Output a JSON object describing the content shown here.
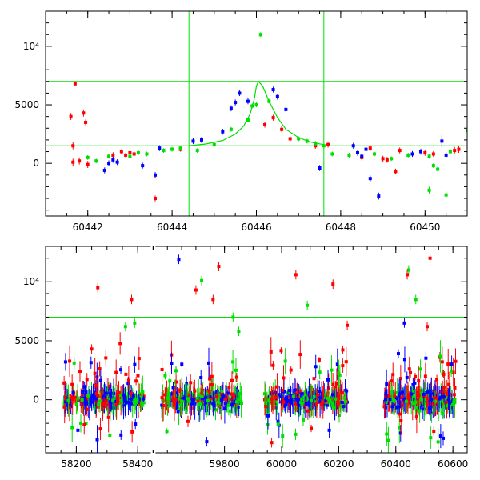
{
  "colors": {
    "red": "#ff0000",
    "blue": "#0000ff",
    "green": "#00e000",
    "axis": "#000000"
  },
  "chart_data": [
    {
      "type": "scatter",
      "xlim": [
        60441.0,
        60451.0
      ],
      "ylim": [
        -4500,
        13000
      ],
      "xticks": [
        {
          "v": 60442,
          "label": "60442"
        },
        {
          "v": 60444,
          "label": "60444"
        },
        {
          "v": 60446,
          "label": "60446"
        },
        {
          "v": 60448,
          "label": "60448"
        },
        {
          "v": 60450,
          "label": "60450"
        }
      ],
      "yticks": [
        {
          "v": 0,
          "label": "0"
        },
        {
          "v": 5000,
          "label": "5000"
        },
        {
          "v": 10000,
          "label": "10⁴"
        }
      ],
      "hlines": [
        1500,
        7000
      ],
      "vlines": [
        60444.4,
        60447.6
      ],
      "model_curve": {
        "color": "green",
        "points": [
          [
            60444.4,
            1500
          ],
          [
            60444.8,
            1650
          ],
          [
            60445.2,
            1950
          ],
          [
            60445.5,
            2500
          ],
          [
            60445.7,
            3200
          ],
          [
            60445.85,
            4200
          ],
          [
            60445.95,
            5500
          ],
          [
            60446.0,
            6600
          ],
          [
            60446.05,
            7000
          ],
          [
            60446.15,
            6600
          ],
          [
            60446.3,
            5300
          ],
          [
            60446.5,
            3900
          ],
          [
            60446.7,
            2900
          ],
          [
            60447.0,
            2200
          ],
          [
            60447.3,
            1800
          ],
          [
            60447.6,
            1600
          ]
        ]
      },
      "series": [
        {
          "color": "red",
          "points": [
            [
              60441.65,
              1500,
              300
            ],
            [
              60441.7,
              6800,
              200
            ],
            [
              60441.6,
              4000,
              300
            ],
            [
              60441.9,
              4300,
              300
            ],
            [
              60441.95,
              3500,
              250
            ],
            [
              60441.65,
              100,
              300
            ],
            [
              60441.8,
              200,
              300
            ],
            [
              60442.0,
              -100,
              300
            ],
            [
              60442.6,
              700,
              250
            ],
            [
              60442.8,
              1000,
              200
            ],
            [
              60442.9,
              700,
              200
            ],
            [
              60443.0,
              900,
              200
            ],
            [
              60443.1,
              800,
              200
            ],
            [
              60443.6,
              -3000,
              250
            ],
            [
              60444.2,
              1200,
              200
            ],
            [
              60446.2,
              3300,
              250
            ],
            [
              60446.4,
              3900,
              250
            ],
            [
              60446.6,
              2900,
              250
            ],
            [
              60446.8,
              2100,
              250
            ],
            [
              60447.4,
              1500,
              250
            ],
            [
              60447.7,
              1600,
              250
            ],
            [
              60448.5,
              500,
              250
            ],
            [
              60448.7,
              1300,
              250
            ],
            [
              60449.0,
              400,
              250
            ],
            [
              60449.1,
              300,
              250
            ],
            [
              60449.3,
              -700,
              250
            ],
            [
              60449.4,
              1100,
              250
            ],
            [
              60450.0,
              900,
              250
            ],
            [
              60450.2,
              800,
              250
            ],
            [
              60450.7,
              1100,
              300
            ],
            [
              60450.8,
              1200,
              300
            ]
          ]
        },
        {
          "color": "blue",
          "points": [
            [
              60442.4,
              -600,
              250
            ],
            [
              60442.5,
              0,
              250
            ],
            [
              60442.6,
              300,
              250
            ],
            [
              60442.7,
              100,
              250
            ],
            [
              60443.3,
              -200,
              250
            ],
            [
              60443.6,
              -1000,
              250
            ],
            [
              60443.7,
              1300,
              250
            ],
            [
              60444.5,
              1900,
              250
            ],
            [
              60444.7,
              2000,
              250
            ],
            [
              60445.2,
              2700,
              250
            ],
            [
              60445.4,
              4700,
              250
            ],
            [
              60445.5,
              5200,
              250
            ],
            [
              60445.6,
              6000,
              250
            ],
            [
              60445.8,
              5300,
              250
            ],
            [
              60446.4,
              6300,
              250
            ],
            [
              60446.5,
              5700,
              250
            ],
            [
              60446.7,
              4600,
              250
            ],
            [
              60447.5,
              -400,
              250
            ],
            [
              60448.3,
              1500,
              250
            ],
            [
              60448.4,
              900,
              250
            ],
            [
              60448.5,
              600,
              250
            ],
            [
              60448.6,
              1200,
              250
            ],
            [
              60448.7,
              -1300,
              250
            ],
            [
              60448.9,
              -2800,
              300
            ],
            [
              60449.7,
              800,
              250
            ],
            [
              60449.9,
              1000,
              250
            ],
            [
              60450.4,
              1900,
              500
            ],
            [
              60450.5,
              700,
              250
            ]
          ]
        },
        {
          "color": "green",
          "points": [
            [
              60442.0,
              500,
              200
            ],
            [
              60442.2,
              200,
              200
            ],
            [
              60442.5,
              600,
              200
            ],
            [
              60443.0,
              600,
              200
            ],
            [
              60443.2,
              900,
              200
            ],
            [
              60443.4,
              800,
              200
            ],
            [
              60443.8,
              1100,
              200
            ],
            [
              60444.0,
              1200,
              200
            ],
            [
              60444.2,
              1300,
              200
            ],
            [
              60444.6,
              1100,
              200
            ],
            [
              60445.0,
              1600,
              200
            ],
            [
              60445.4,
              2900,
              200
            ],
            [
              60445.8,
              3700,
              200
            ],
            [
              60445.9,
              4900,
              200
            ],
            [
              60446.0,
              5000,
              200
            ],
            [
              60446.1,
              11000,
              200
            ],
            [
              60446.3,
              5300,
              200
            ],
            [
              60447.0,
              2100,
              200
            ],
            [
              60447.2,
              1900,
              200
            ],
            [
              60447.4,
              1700,
              200
            ],
            [
              60447.6,
              1500,
              200
            ],
            [
              60447.8,
              800,
              200
            ],
            [
              60448.2,
              700,
              200
            ],
            [
              60448.8,
              800,
              200
            ],
            [
              60449.2,
              400,
              200
            ],
            [
              60449.6,
              700,
              200
            ],
            [
              60450.1,
              600,
              200
            ],
            [
              60450.2,
              -200,
              200
            ],
            [
              60450.3,
              -500,
              200
            ],
            [
              60450.1,
              -2300,
              300
            ],
            [
              60450.5,
              -2700,
              300
            ],
            [
              60450.6,
              1000,
              200
            ],
            [
              60451.0,
              2800,
              300
            ]
          ]
        }
      ]
    },
    {
      "type": "scatter",
      "xlim": [
        58100,
        60650
      ],
      "ylim": [
        -4500,
        13000
      ],
      "broken_x_axis": {
        "segments": [
          {
            "data": [
              58100,
              58450
            ],
            "frac": [
              0.0,
              0.255
            ]
          },
          {
            "data": [
              59550,
              60650
            ],
            "frac": [
              0.255,
              1.0
            ]
          }
        ]
      },
      "xticks": [
        {
          "v": 58200,
          "label": "58200"
        },
        {
          "v": 58400,
          "label": "58400"
        },
        {
          "v": 59800,
          "label": "59800"
        },
        {
          "v": 60000,
          "label": "60000"
        },
        {
          "v": 60200,
          "label": "60200"
        },
        {
          "v": 60400,
          "label": "60400"
        },
        {
          "v": 60600,
          "label": "60600"
        }
      ],
      "yticks": [
        {
          "v": 0,
          "label": "0"
        },
        {
          "v": 5000,
          "label": "5000"
        },
        {
          "v": 10000,
          "label": "10⁴"
        }
      ],
      "hlines": [
        1500,
        7000
      ],
      "season_ranges": [
        [
          58160,
          58420
        ],
        [
          59580,
          59860
        ],
        [
          59940,
          60230
        ],
        [
          60360,
          60610
        ]
      ],
      "outliers": [
        {
          "x": 58270,
          "y": 9500,
          "color": "red"
        },
        {
          "x": 58380,
          "y": 8500,
          "color": "red"
        },
        {
          "x": 58250,
          "y": 4300,
          "color": "red"
        },
        {
          "x": 58360,
          "y": 6200,
          "color": "green"
        },
        {
          "x": 58390,
          "y": 6500,
          "color": "green"
        },
        {
          "x": 59640,
          "y": 11900,
          "color": "blue"
        },
        {
          "x": 59700,
          "y": 9300,
          "color": "red"
        },
        {
          "x": 59720,
          "y": 10100,
          "color": "green"
        },
        {
          "x": 59780,
          "y": 11300,
          "color": "red"
        },
        {
          "x": 59760,
          "y": 8500,
          "color": "red"
        },
        {
          "x": 59830,
          "y": 7000,
          "color": "green"
        },
        {
          "x": 59850,
          "y": 5800,
          "color": "green"
        },
        {
          "x": 60050,
          "y": 10600,
          "color": "red"
        },
        {
          "x": 60090,
          "y": 8000,
          "color": "green"
        },
        {
          "x": 60180,
          "y": 9800,
          "color": "red"
        },
        {
          "x": 60230,
          "y": 6300,
          "color": "red"
        },
        {
          "x": 60445,
          "y": 11000,
          "color": "green"
        },
        {
          "x": 60440,
          "y": 10600,
          "color": "red"
        },
        {
          "x": 60470,
          "y": 8500,
          "color": "green"
        },
        {
          "x": 60520,
          "y": 12000,
          "color": "red"
        },
        {
          "x": 60510,
          "y": 6200,
          "color": "red"
        },
        {
          "x": 60430,
          "y": 6500,
          "color": "blue"
        }
      ]
    }
  ]
}
